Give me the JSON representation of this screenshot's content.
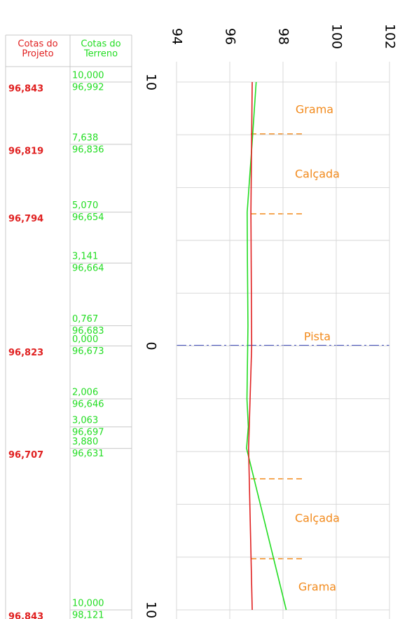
{
  "chart_data": {
    "type": "line",
    "headers": [
      [
        "Cotas do",
        "Projeto"
      ],
      [
        "Cotas do",
        "Terreno"
      ]
    ],
    "xlim": [
      94,
      102
    ],
    "xticks": [
      94,
      96,
      98,
      100,
      102
    ],
    "ylim": [
      -10,
      10
    ],
    "yticks": [
      {
        "value": -10,
        "label": "10"
      },
      0,
      {
        "value": 10,
        "label": "10"
      }
    ],
    "ygrid": [
      -10,
      -8,
      -6,
      -4,
      -2,
      0,
      2,
      4,
      6,
      8,
      10
    ],
    "grid": true,
    "series": [
      {
        "name": "Cotas do Terreno",
        "color": "#22dd22",
        "x": [
          -10,
          -7.638,
          -5.07,
          -3.141,
          -0.767,
          0,
          2.006,
          3.063,
          3.88,
          10
        ],
        "x_labels": [
          "10,000",
          "7,638",
          "5,070",
          "3,141",
          "0,767",
          "0,000",
          "2,006",
          "3,063",
          "3,880",
          "10,000"
        ],
        "values": [
          96.992,
          96.836,
          96.654,
          96.664,
          96.683,
          96.673,
          96.646,
          96.697,
          96.631,
          98.121
        ],
        "value_labels": [
          "96,992",
          "96,836",
          "96,654",
          "96,664",
          "96,683",
          "96,673",
          "96,646",
          "96,697",
          "96,631",
          "98,121"
        ]
      },
      {
        "name": "Cotas do Projeto",
        "color": "#e02020",
        "x": [
          -10,
          -7.638,
          -5.07,
          0,
          3.88,
          10
        ],
        "values": [
          96.843,
          96.819,
          96.794,
          96.823,
          96.707,
          96.843
        ],
        "value_labels": [
          "96,843",
          "96,819",
          "96,794",
          "96,823",
          "96,707",
          "96,843"
        ]
      }
    ],
    "annotations": [
      "Grama",
      "Calçada",
      "Pista",
      "Calçada",
      "Grama"
    ]
  }
}
